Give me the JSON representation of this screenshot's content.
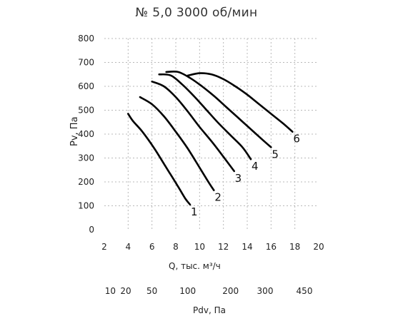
{
  "chart_data": {
    "type": "line",
    "title": "№ 5,0 3000 об/мин",
    "xlabel": "Q, тыс. м³/ч",
    "ylabel": "Pv, Па",
    "xlim": [
      2,
      20
    ],
    "ylim": [
      0,
      800
    ],
    "x_ticks": [
      2,
      4,
      6,
      8,
      10,
      12,
      14,
      16,
      18,
      20
    ],
    "y_ticks": [
      0,
      100,
      200,
      300,
      400,
      500,
      600,
      700,
      800
    ],
    "grid": true,
    "series": [
      {
        "name": "1",
        "points": [
          [
            4.0,
            485
          ],
          [
            4.4,
            455
          ],
          [
            5.2,
            410
          ],
          [
            6.2,
            340
          ],
          [
            7.2,
            260
          ],
          [
            8.2,
            180
          ],
          [
            8.8,
            130
          ],
          [
            9.2,
            105
          ]
        ]
      },
      {
        "name": "2",
        "points": [
          [
            5.0,
            555
          ],
          [
            6.0,
            525
          ],
          [
            7.0,
            475
          ],
          [
            8.0,
            410
          ],
          [
            9.0,
            340
          ],
          [
            10.0,
            260
          ],
          [
            10.8,
            195
          ],
          [
            11.2,
            165
          ]
        ]
      },
      {
        "name": "3",
        "points": [
          [
            6.0,
            620
          ],
          [
            7.0,
            600
          ],
          [
            8.0,
            555
          ],
          [
            9.0,
            495
          ],
          [
            10.0,
            430
          ],
          [
            11.0,
            370
          ],
          [
            12.0,
            305
          ],
          [
            12.9,
            245
          ]
        ]
      },
      {
        "name": "4",
        "points": [
          [
            6.6,
            650
          ],
          [
            7.6,
            645
          ],
          [
            8.6,
            605
          ],
          [
            9.6,
            555
          ],
          [
            10.6,
            500
          ],
          [
            11.6,
            445
          ],
          [
            12.6,
            395
          ],
          [
            13.6,
            345
          ],
          [
            14.3,
            295
          ]
        ]
      },
      {
        "name": "5",
        "points": [
          [
            7.2,
            660
          ],
          [
            8.2,
            660
          ],
          [
            9.2,
            635
          ],
          [
            10.2,
            600
          ],
          [
            11.2,
            560
          ],
          [
            12.2,
            515
          ],
          [
            13.2,
            470
          ],
          [
            14.2,
            425
          ],
          [
            15.2,
            380
          ],
          [
            16.0,
            345
          ]
        ]
      },
      {
        "name": "6",
        "points": [
          [
            9.0,
            645
          ],
          [
            10.0,
            655
          ],
          [
            11.0,
            650
          ],
          [
            12.0,
            630
          ],
          [
            13.0,
            600
          ],
          [
            14.0,
            565
          ],
          [
            15.0,
            525
          ],
          [
            16.0,
            485
          ],
          [
            17.0,
            445
          ],
          [
            17.8,
            410
          ]
        ]
      }
    ],
    "secondary_axis": {
      "label": "Pdv, Па",
      "ticks": [
        {
          "label": "10",
          "q": 2.5
        },
        {
          "label": "20",
          "q": 3.8
        },
        {
          "label": "50",
          "q": 6.0
        },
        {
          "label": "100",
          "q": 9.0
        },
        {
          "label": "200",
          "q": 12.6
        },
        {
          "label": "300",
          "q": 15.5
        },
        {
          "label": "450",
          "q": 18.8
        }
      ]
    }
  }
}
